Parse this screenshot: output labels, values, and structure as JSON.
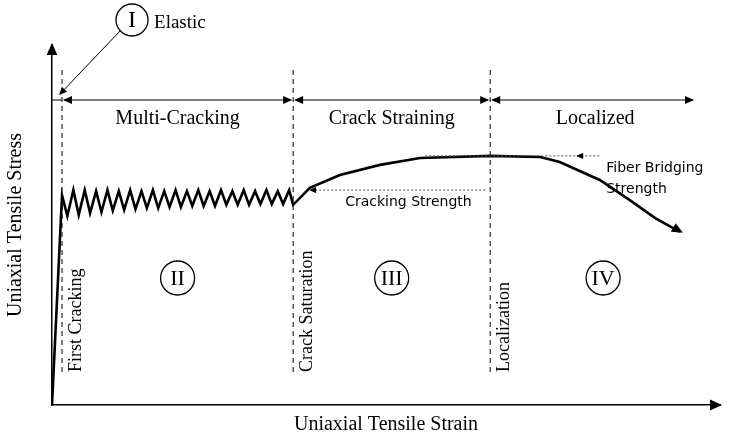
{
  "chart_data": {
    "type": "line",
    "x_label": "Uniaxial Tensile Strain",
    "y_label": "Uniaxial Tensile Stress",
    "x": [
      0,
      1.5,
      2.3,
      3.2,
      4.0,
      4.9,
      5.7,
      6.6,
      7.4,
      8.3,
      9.1,
      10.0,
      10.8,
      11.7,
      12.5,
      13.4,
      14.2,
      15.1,
      15.9,
      16.8,
      17.6,
      18.5,
      19.3,
      20.2,
      21.0,
      21.9,
      22.7,
      23.6,
      24.4,
      25.3,
      26.1,
      27.0,
      27.8,
      28.7,
      29.5,
      30.4,
      31.2,
      32.1,
      32.9,
      33.8,
      34.6,
      35.5,
      36.1,
      38.6,
      43.1,
      49.1,
      55.1,
      65.6,
      73.1,
      76.0,
      82.0,
      86.5,
      90.3,
      94.0
    ],
    "values": [
      0,
      58.3,
      52.5,
      59.7,
      52.8,
      59.7,
      53.3,
      59.4,
      53.6,
      59.7,
      54.0,
      59.4,
      54.2,
      59.7,
      54.4,
      59.4,
      54.7,
      59.7,
      54.7,
      59.4,
      55.0,
      59.7,
      55.0,
      59.4,
      55.3,
      59.7,
      55.3,
      59.4,
      55.3,
      59.7,
      55.6,
      59.4,
      55.6,
      59.7,
      55.6,
      59.4,
      55.8,
      59.7,
      55.8,
      59.4,
      55.8,
      59.7,
      55.6,
      60.3,
      63.9,
      66.7,
      68.6,
      69.2,
      68.9,
      67.5,
      62.5,
      56.9,
      51.9,
      48.1
    ],
    "color": "#000000",
    "xlim": [
      0,
      100
    ],
    "ylim": [
      0,
      100
    ],
    "tick_labels": false,
    "grid": false,
    "stages": [
      {
        "numeral": "I",
        "name": "Elastic",
        "x_end": 1.5,
        "event": "First Cracking"
      },
      {
        "numeral": "II",
        "name": "Multi-Cracking",
        "x_end": 36.1,
        "event": "Crack Saturation"
      },
      {
        "numeral": "III",
        "name": "Crack Straining",
        "x_end": 65.6,
        "event": "Localization"
      },
      {
        "numeral": "IV",
        "name": "Localized"
      }
    ],
    "levels": [
      {
        "label": [
          "Cracking Strength"
        ],
        "y": 59.7
      },
      {
        "label": [
          "Fiber Bridging",
          "Strength"
        ],
        "y": 69.2
      }
    ]
  }
}
